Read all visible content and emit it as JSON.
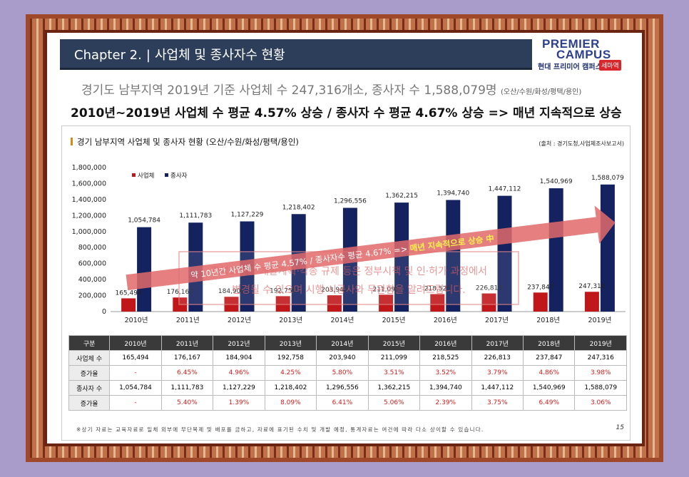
{
  "header": {
    "chapter": "Chapter  2.",
    "separator": "|",
    "title": "사업체 및 종사자수 현황"
  },
  "logo": {
    "line1": "PREMIER",
    "line2": "CAMPUS",
    "line3": "현대 프리미어 캠퍼스",
    "badge": "세마역"
  },
  "subtitle": {
    "main": "경기도 남부지역 2019년 기준 사업체 수 247,316개소, 종사자 수 1,588,079명",
    "note": "(오산/수원/화성/평택/용인)"
  },
  "headline": "2010년~2019년 사업체 수 평균 4.57% 상승 / 종사자 수 평균 4.67% 상승 => 매년 지속적으로 상승",
  "panel": {
    "title": "경기 남부지역 사업체 및 종사자 현황 (오산/수원/화성/평택/용인)",
    "source": "(출처 : 경기도청,사업체조사보고서)"
  },
  "colors": {
    "business": "#c0181a",
    "employees": "#14225f",
    "arrow": "#e26a6a",
    "header_bar": "#2d3e5a"
  },
  "chart_data": {
    "type": "bar",
    "categories": [
      "2010년",
      "2011년",
      "2012년",
      "2013년",
      "2014년",
      "2015년",
      "2016년",
      "2017년",
      "2018년",
      "2019년"
    ],
    "series": [
      {
        "name": "사업체",
        "values": [
          165494,
          176167,
          184904,
          192758,
          203940,
          211099,
          218525,
          226813,
          237847,
          247316
        ],
        "labels": [
          "165,494",
          "176,167",
          "184,904",
          "192,758",
          "203,940",
          "211,099",
          "218,525",
          "226,813",
          "237,847",
          "247,316"
        ]
      },
      {
        "name": "종사자",
        "values": [
          1054784,
          1111783,
          1127229,
          1218402,
          1296556,
          1362215,
          1394740,
          1447112,
          1540969,
          1588079
        ],
        "labels": [
          "1,054,784",
          "1,111,783",
          "1,127,229",
          "1,218,402",
          "1,296,556",
          "1,362,215",
          "1,394,740",
          "1,447,112",
          "1,540,969",
          "1,588,079"
        ]
      }
    ],
    "ylim": [
      0,
      1800000
    ],
    "yticks": [
      "0",
      "200,000",
      "400,000",
      "600,000",
      "800,000",
      "1,000,000",
      "1,200,000",
      "1,400,000",
      "1,600,000",
      "1,800,000"
    ],
    "legend": "top-left",
    "grid": false,
    "annotations": {
      "arrow_text_main": "약 10년간 사업체 수 평균 4.57% / 종사자수 평균 4.67% => ",
      "arrow_text_highlight": "매년 지속적으로 상승 中",
      "watermark_line1": "광역교통망·개발계획·각종 규제 등은 정부시책 및 인·허가 과정에서",
      "watermark_line2": "변경될 수 있으며 시행·시공사와 무관함을 알려드립니다."
    }
  },
  "table": {
    "header": [
      "구분",
      "2010년",
      "2011년",
      "2012년",
      "2013년",
      "2014년",
      "2015년",
      "2016년",
      "2017년",
      "2018년",
      "2019년"
    ],
    "rows": [
      {
        "label": "사업체 수",
        "cells": [
          "165,494",
          "176,167",
          "184,904",
          "192,758",
          "203,940",
          "211,099",
          "218,525",
          "226,813",
          "237,847",
          "247,316"
        ],
        "red": false
      },
      {
        "label": "증가율",
        "cells": [
          "-",
          "6.45%",
          "4.96%",
          "4.25%",
          "5.80%",
          "3.51%",
          "3.52%",
          "3.79%",
          "4.86%",
          "3.98%"
        ],
        "red": true
      },
      {
        "label": "종사자 수",
        "cells": [
          "1,054,784",
          "1,111,783",
          "1,127,229",
          "1,218,402",
          "1,296,556",
          "1,362,215",
          "1,394,740",
          "1,447,112",
          "1,540,969",
          "1,588,079"
        ],
        "red": false
      },
      {
        "label": "증가율",
        "cells": [
          "-",
          "5.40%",
          "1.39%",
          "8.09%",
          "6.41%",
          "5.06%",
          "2.39%",
          "3.75%",
          "6.49%",
          "3.06%"
        ],
        "red": true
      }
    ]
  },
  "footnote": "※상기 자료는 교육자료로 일체 외부에 무단복제 및 배포를 금하고, 자료에 표기된 수치 및 개발 예정, 통계자료는 여건에 따라 다소 상이할 수 있습니다.",
  "page_number": "15"
}
